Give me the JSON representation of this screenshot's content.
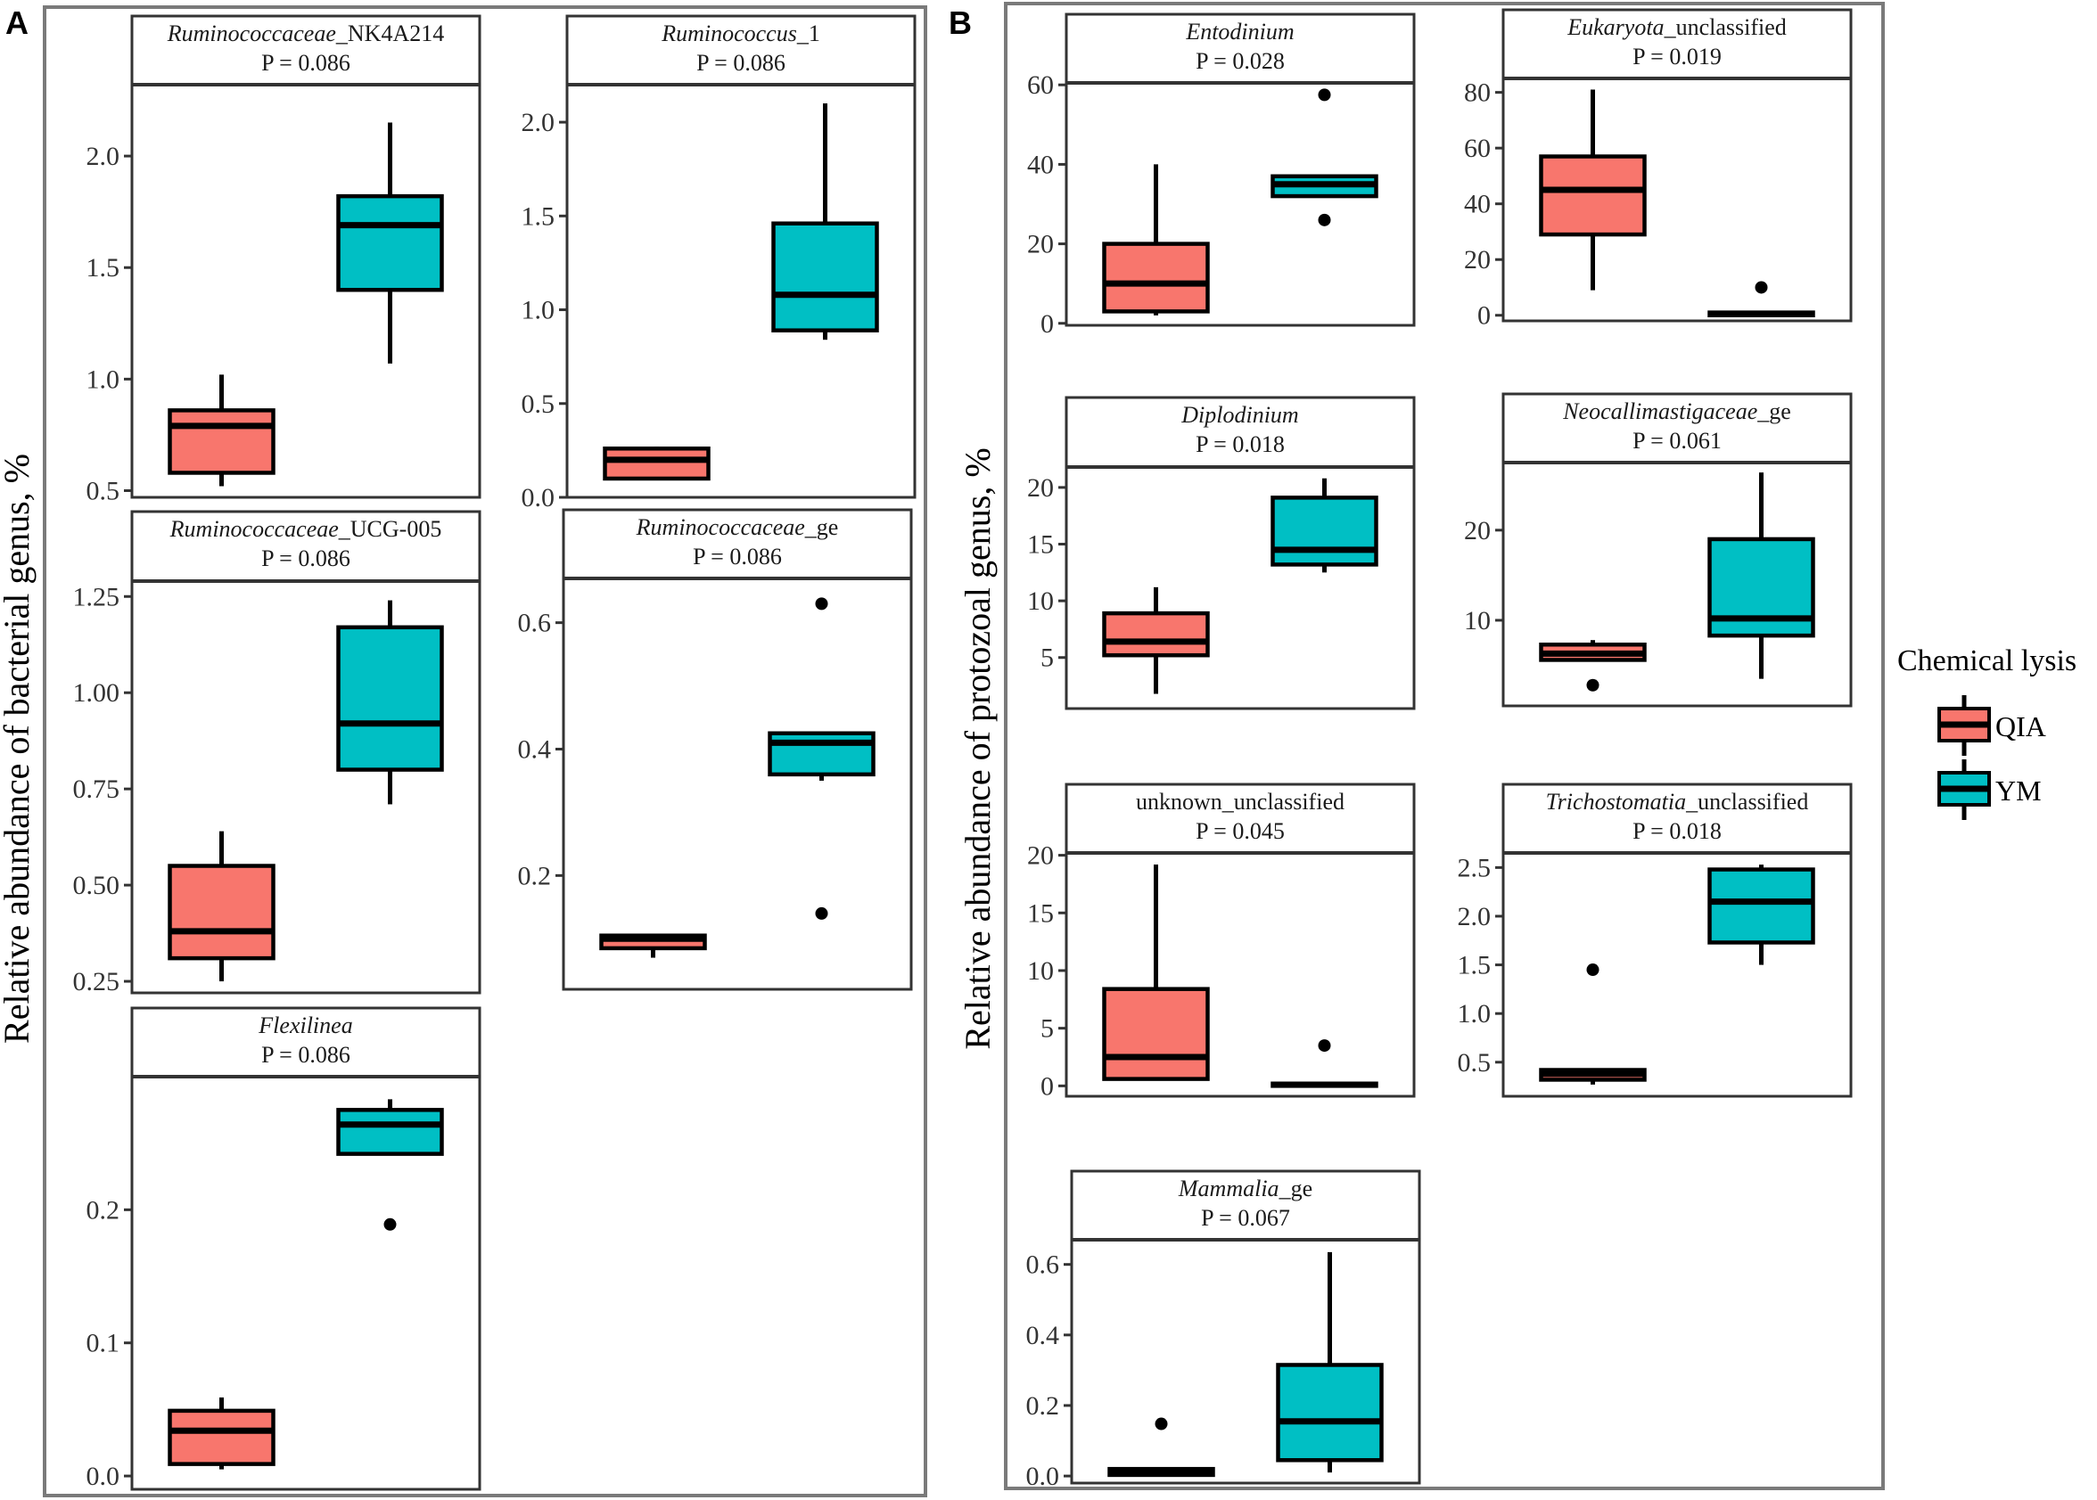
{
  "figure": {
    "panel_a_tag": "A",
    "panel_b_tag": "B",
    "ylabel_a": "Relative abundance of bacterial genus, %",
    "ylabel_b": "Relative abundance of protozoal genus, %"
  },
  "legend": {
    "title": "Chemical lysis",
    "items": [
      {
        "label": "QIA",
        "color": "#F8766D"
      },
      {
        "label": "YM",
        "color": "#00BFC4"
      }
    ]
  },
  "chart_data": [
    {
      "type": "boxplot",
      "panel": "A",
      "title_italic": "Ruminococcaceae",
      "title_rest": "_NK4A214",
      "pvalue": "P = 0.086",
      "ylim": [
        0.47,
        2.32
      ],
      "yticks": [
        0.5,
        1.0,
        1.5,
        2.0
      ],
      "ytick_labels": [
        "0.5",
        "1.0",
        "1.5",
        "2.0"
      ],
      "groups": [
        {
          "name": "QIA",
          "whisker_low": 0.52,
          "q1": 0.58,
          "median": 0.79,
          "q3": 0.86,
          "whisker_high": 1.02,
          "outliers": []
        },
        {
          "name": "YM",
          "whisker_low": 1.07,
          "q1": 1.4,
          "median": 1.69,
          "q3": 1.82,
          "whisker_high": 2.15,
          "outliers": []
        }
      ]
    },
    {
      "type": "boxplot",
      "panel": "A",
      "title_italic": "Ruminococcus",
      "title_rest": "_1",
      "pvalue": "P = 0.086",
      "ylim": [
        0.0,
        2.2
      ],
      "yticks": [
        0.0,
        0.5,
        1.0,
        1.5,
        2.0
      ],
      "ytick_labels": [
        "0.0",
        "0.5",
        "1.0",
        "1.5",
        "2.0"
      ],
      "groups": [
        {
          "name": "QIA",
          "whisker_low": 0.1,
          "q1": 0.1,
          "median": 0.2,
          "q3": 0.26,
          "whisker_high": 0.27,
          "outliers": []
        },
        {
          "name": "YM",
          "whisker_low": 0.84,
          "q1": 0.89,
          "median": 1.08,
          "q3": 1.46,
          "whisker_high": 2.1,
          "outliers": []
        }
      ]
    },
    {
      "type": "boxplot",
      "panel": "A",
      "title_italic": "Ruminococcaceae",
      "title_rest": "_UCG-005",
      "pvalue": "P = 0.086",
      "ylim": [
        0.22,
        1.29
      ],
      "yticks": [
        0.25,
        0.5,
        0.75,
        1.0,
        1.25
      ],
      "ytick_labels": [
        "0.25",
        "0.50",
        "0.75",
        "1.00",
        "1.25"
      ],
      "groups": [
        {
          "name": "QIA",
          "whisker_low": 0.25,
          "q1": 0.31,
          "median": 0.38,
          "q3": 0.55,
          "whisker_high": 0.64,
          "outliers": []
        },
        {
          "name": "YM",
          "whisker_low": 0.71,
          "q1": 0.8,
          "median": 0.92,
          "q3": 1.17,
          "whisker_high": 1.24,
          "outliers": []
        }
      ]
    },
    {
      "type": "boxplot",
      "panel": "A",
      "title_italic": "Ruminococcaceae",
      "title_rest": "_ge",
      "pvalue": "P = 0.086",
      "ylim": [
        0.02,
        0.67
      ],
      "yticks": [
        0.2,
        0.4,
        0.6
      ],
      "ytick_labels": [
        "0.2",
        "0.4",
        "0.6"
      ],
      "groups": [
        {
          "name": "QIA",
          "whisker_low": 0.07,
          "q1": 0.085,
          "median": 0.1,
          "q3": 0.105,
          "whisker_high": 0.105,
          "outliers": []
        },
        {
          "name": "YM",
          "whisker_low": 0.35,
          "q1": 0.36,
          "median": 0.41,
          "q3": 0.425,
          "whisker_high": 0.425,
          "outliers": [
            0.14,
            0.63
          ]
        }
      ]
    },
    {
      "type": "boxplot",
      "panel": "A",
      "title_italic": "Flexilinea",
      "title_rest": "",
      "pvalue": "P = 0.086",
      "ylim": [
        -0.01,
        0.3
      ],
      "yticks": [
        0.0,
        0.1,
        0.2
      ],
      "ytick_labels": [
        "0.0",
        "0.1",
        "0.2"
      ],
      "groups": [
        {
          "name": "QIA",
          "whisker_low": 0.005,
          "q1": 0.009,
          "median": 0.034,
          "q3": 0.049,
          "whisker_high": 0.059,
          "outliers": []
        },
        {
          "name": "YM",
          "whisker_low": 0.242,
          "q1": 0.242,
          "median": 0.264,
          "q3": 0.275,
          "whisker_high": 0.283,
          "outliers": [
            0.189
          ]
        }
      ]
    },
    {
      "type": "boxplot",
      "panel": "B",
      "title_italic": "Entodinium",
      "title_rest": "",
      "pvalue": "P = 0.028",
      "ylim": [
        -0.5,
        60.5
      ],
      "yticks": [
        0,
        20,
        40,
        60
      ],
      "ytick_labels": [
        "0",
        "20",
        "40",
        "60"
      ],
      "groups": [
        {
          "name": "QIA",
          "whisker_low": 2,
          "q1": 3,
          "median": 10,
          "q3": 20,
          "whisker_high": 40,
          "outliers": []
        },
        {
          "name": "YM",
          "whisker_low": 32,
          "q1": 32,
          "median": 35,
          "q3": 37,
          "whisker_high": 37,
          "outliers": [
            26,
            57.5
          ]
        }
      ]
    },
    {
      "type": "boxplot",
      "panel": "B",
      "title_italic": "Eukaryota",
      "title_rest": "_unclassified",
      "pvalue": "P = 0.019",
      "ylim": [
        -2,
        85
      ],
      "yticks": [
        0,
        20,
        40,
        60,
        80
      ],
      "ytick_labels": [
        "0",
        "20",
        "40",
        "60",
        "80"
      ],
      "groups": [
        {
          "name": "QIA",
          "whisker_low": 9,
          "q1": 29,
          "median": 45,
          "q3": 57,
          "whisker_high": 81,
          "outliers": []
        },
        {
          "name": "YM",
          "whisker_low": 0,
          "q1": 0,
          "median": 0.5,
          "q3": 1,
          "whisker_high": 1,
          "outliers": [
            10
          ]
        }
      ]
    },
    {
      "type": "boxplot",
      "panel": "B",
      "title_italic": "Diplodinium",
      "title_rest": "",
      "pvalue": "P = 0.018",
      "ylim": [
        0.5,
        21.8
      ],
      "yticks": [
        5,
        10,
        15,
        20
      ],
      "ytick_labels": [
        "5",
        "10",
        "15",
        "20"
      ],
      "groups": [
        {
          "name": "QIA",
          "whisker_low": 1.8,
          "q1": 5.2,
          "median": 6.4,
          "q3": 8.9,
          "whisker_high": 11.2,
          "outliers": []
        },
        {
          "name": "YM",
          "whisker_low": 12.5,
          "q1": 13.2,
          "median": 14.5,
          "q3": 19.1,
          "whisker_high": 20.8,
          "outliers": []
        }
      ]
    },
    {
      "type": "boxplot",
      "panel": "B",
      "title_italic": "Neocallimastigaceae",
      "title_rest": "_ge",
      "pvalue": "P = 0.061",
      "ylim": [
        0.5,
        27.5
      ],
      "yticks": [
        10,
        20
      ],
      "ytick_labels": [
        "10",
        "20"
      ],
      "groups": [
        {
          "name": "QIA",
          "whisker_low": 5.5,
          "q1": 5.6,
          "median": 6.3,
          "q3": 7.3,
          "whisker_high": 7.8,
          "outliers": [
            2.8
          ]
        },
        {
          "name": "YM",
          "whisker_low": 3.5,
          "q1": 8.3,
          "median": 10.2,
          "q3": 19.0,
          "whisker_high": 26.4,
          "outliers": []
        }
      ]
    },
    {
      "type": "boxplot",
      "panel": "B",
      "title_italic": "",
      "title_rest": "unknown_unclassified",
      "pvalue": "P = 0.045",
      "ylim": [
        -0.9,
        20.2
      ],
      "yticks": [
        0,
        5,
        10,
        15,
        20
      ],
      "ytick_labels": [
        "0",
        "5",
        "10",
        "15",
        "20"
      ],
      "groups": [
        {
          "name": "QIA",
          "whisker_low": 0.5,
          "q1": 0.6,
          "median": 2.5,
          "q3": 8.4,
          "whisker_high": 19.2,
          "outliers": []
        },
        {
          "name": "YM",
          "whisker_low": 0,
          "q1": 0,
          "median": 0.1,
          "q3": 0.2,
          "whisker_high": 0.2,
          "outliers": [
            3.5
          ]
        }
      ]
    },
    {
      "type": "boxplot",
      "panel": "B",
      "title_italic": "Trichostomatia",
      "title_rest": "_unclassified",
      "pvalue": "P = 0.018",
      "ylim": [
        0.15,
        2.65
      ],
      "yticks": [
        0.5,
        1.0,
        1.5,
        2.0,
        2.5
      ],
      "ytick_labels": [
        "0.5",
        "1.0",
        "1.5",
        "2.0",
        "2.5"
      ],
      "groups": [
        {
          "name": "QIA",
          "whisker_low": 0.27,
          "q1": 0.32,
          "median": 0.38,
          "q3": 0.42,
          "whisker_high": 0.43,
          "outliers": [
            1.45
          ]
        },
        {
          "name": "YM",
          "whisker_low": 1.5,
          "q1": 1.73,
          "median": 2.15,
          "q3": 2.48,
          "whisker_high": 2.53,
          "outliers": []
        }
      ]
    },
    {
      "type": "boxplot",
      "panel": "B",
      "title_italic": "Mammalia",
      "title_rest": "_ge",
      "pvalue": "P = 0.067",
      "ylim": [
        -0.02,
        0.67
      ],
      "yticks": [
        0.0,
        0.2,
        0.4,
        0.6
      ],
      "ytick_labels": [
        "0.0",
        "0.2",
        "0.4",
        "0.6"
      ],
      "groups": [
        {
          "name": "QIA",
          "whisker_low": 0.0,
          "q1": 0.003,
          "median": 0.01,
          "q3": 0.02,
          "whisker_high": 0.02,
          "outliers": [
            0.148
          ]
        },
        {
          "name": "YM",
          "whisker_low": 0.01,
          "q1": 0.045,
          "median": 0.155,
          "q3": 0.315,
          "whisker_high": 0.635,
          "outliers": []
        }
      ]
    }
  ]
}
